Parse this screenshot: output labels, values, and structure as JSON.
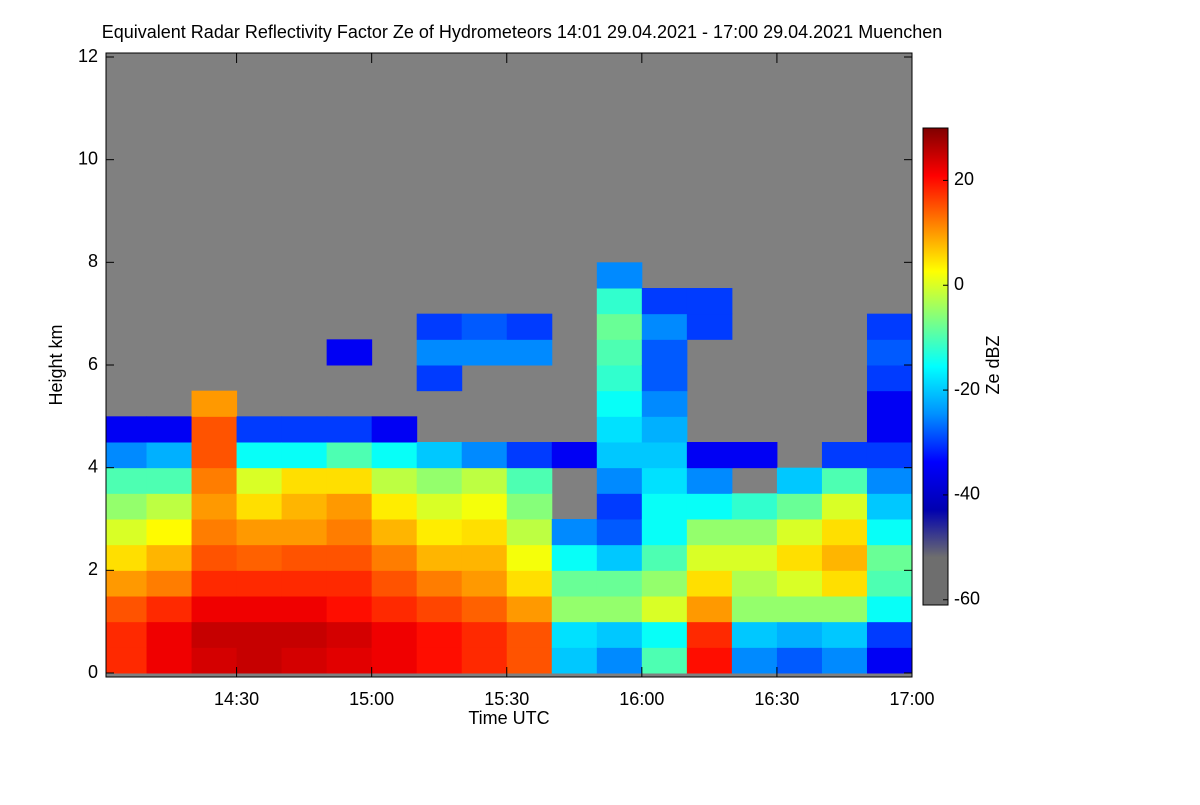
{
  "chart_data": {
    "type": "heatmap",
    "title": "Equivalent Radar Reflectivity Factor Ze of Hydrometeors   14:01 29.04.2021 - 17:00 29.04.2021 Muenchen",
    "x_label": "Time UTC",
    "y_label": "Height km",
    "colorbar_label": "Ze dBZ",
    "xlim": [
      "14:01",
      "17:00"
    ],
    "xticks": [
      "14:30",
      "15:00",
      "15:30",
      "16:00",
      "16:30",
      "17:00"
    ],
    "ylim": [
      0,
      12
    ],
    "yticks": [
      0,
      2,
      4,
      6,
      8,
      10,
      12
    ],
    "zlim": [
      -61,
      30
    ],
    "zticks": [
      20,
      0,
      -20,
      -40,
      -60
    ],
    "background": "#808080",
    "colormap": [
      "#6e6e6e",
      "#6e6e6e",
      "#0000b0",
      "#0000ff",
      "#0090ff",
      "#00ffff",
      "#80ff80",
      "#ffff00",
      "#ff8000",
      "#ff0000",
      "#800000"
    ],
    "x_bins": [
      "14:01",
      "14:10",
      "14:20",
      "14:30",
      "14:40",
      "14:50",
      "15:00",
      "15:10",
      "15:20",
      "15:30",
      "15:40",
      "15:50",
      "16:00",
      "16:10",
      "16:20",
      "16:30",
      "16:40",
      "16:50",
      "17:00"
    ],
    "y_bins": [
      0,
      0.5,
      1,
      1.5,
      2,
      2.5,
      3,
      3.5,
      4,
      4.5,
      5,
      5.5,
      6,
      6.5,
      7,
      7.5,
      8
    ],
    "values": [
      [
        18,
        18,
        15,
        10,
        5,
        0,
        -5,
        -10,
        -25,
        -35,
        null,
        null,
        null,
        null,
        null,
        null
      ],
      [
        22,
        22,
        18,
        12,
        8,
        3,
        -2,
        -10,
        -22,
        -35,
        null,
        null,
        null,
        null,
        null,
        null
      ],
      [
        24,
        25,
        22,
        18,
        15,
        12,
        10,
        12,
        15,
        15,
        10,
        null,
        null,
        null,
        null,
        null
      ],
      [
        25,
        25,
        22,
        18,
        14,
        10,
        5,
        0,
        -15,
        -30,
        null,
        null,
        null,
        null,
        null,
        null
      ],
      [
        24,
        25,
        22,
        18,
        15,
        10,
        8,
        5,
        -15,
        -30,
        null,
        null,
        null,
        null,
        null,
        null
      ],
      [
        23,
        24,
        20,
        18,
        15,
        12,
        10,
        5,
        -10,
        -30,
        null,
        null,
        -35,
        null,
        null,
        null
      ],
      [
        22,
        22,
        18,
        15,
        12,
        8,
        4,
        -2,
        -15,
        -35,
        null,
        null,
        null,
        null,
        null,
        null
      ],
      [
        20,
        20,
        16,
        12,
        8,
        4,
        0,
        -5,
        -20,
        null,
        null,
        -30,
        -25,
        -30,
        null,
        null
      ],
      [
        18,
        18,
        14,
        10,
        8,
        5,
        2,
        -2,
        -25,
        null,
        null,
        null,
        -25,
        -28,
        null,
        null
      ],
      [
        15,
        15,
        10,
        5,
        2,
        -2,
        -6,
        -10,
        -30,
        null,
        null,
        null,
        -25,
        -30,
        null,
        null
      ],
      [
        -20,
        -18,
        -5,
        -8,
        -15,
        -25,
        null,
        null,
        -35,
        null,
        null,
        null,
        null,
        null,
        null,
        null
      ],
      [
        -25,
        -20,
        -5,
        -8,
        -20,
        -28,
        -30,
        -25,
        -20,
        -18,
        -15,
        -12,
        -10,
        -8,
        -12,
        -25
      ],
      [
        -10,
        -15,
        0,
        -5,
        -10,
        -15,
        -15,
        -18,
        -20,
        -22,
        -25,
        -28,
        -28,
        -25,
        -30,
        null
      ],
      [
        20,
        18,
        10,
        5,
        0,
        -5,
        -15,
        -25,
        -35,
        null,
        null,
        null,
        null,
        -30,
        -30,
        null
      ],
      [
        -25,
        -20,
        -5,
        -3,
        0,
        -5,
        -12,
        null,
        -35,
        null,
        null,
        null,
        null,
        null,
        null,
        null
      ],
      [
        -28,
        -22,
        -5,
        0,
        5,
        0,
        -8,
        -20,
        null,
        null,
        null,
        null,
        null,
        null,
        null,
        null
      ],
      [
        -25,
        -20,
        -5,
        5,
        8,
        5,
        0,
        -10,
        -30,
        null,
        null,
        null,
        null,
        null,
        null,
        null
      ],
      [
        -35,
        -30,
        -15,
        -10,
        -8,
        -15,
        -20,
        -25,
        -30,
        -35,
        -35,
        -30,
        -28,
        -30,
        null,
        null
      ]
    ]
  }
}
